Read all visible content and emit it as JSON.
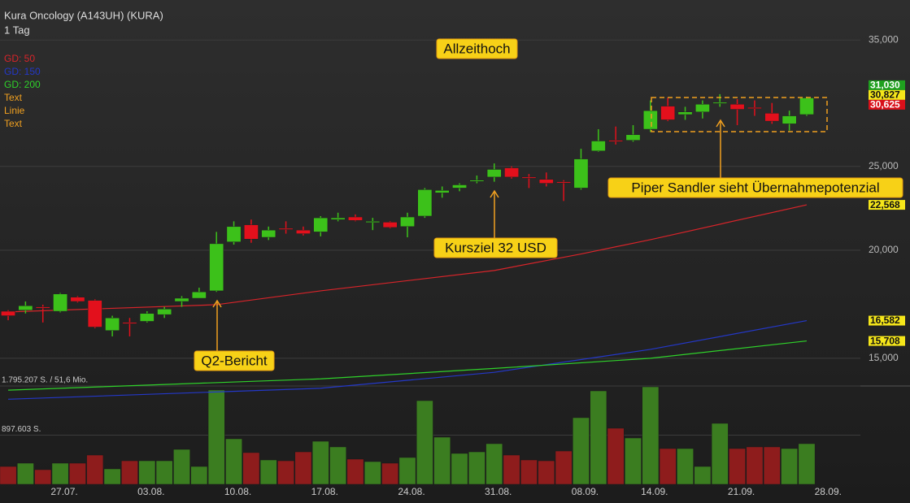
{
  "header": {
    "title": "Kura Oncology (A143UH) (KURA)",
    "interval": "1 Tag"
  },
  "chart_data": {
    "type": "candlestick",
    "xlim": [
      -0.47,
      48.25
    ],
    "xticks": [
      {
        "value": 3,
        "label": "27.07."
      },
      {
        "value": 8,
        "label": "03.08."
      },
      {
        "value": 13,
        "label": "10.08."
      },
      {
        "value": 18,
        "label": "17.08."
      },
      {
        "value": 23,
        "label": "24.08."
      },
      {
        "value": 28,
        "label": "31.08."
      },
      {
        "value": 33,
        "label": "08.09."
      },
      {
        "value": 37,
        "label": "14.09."
      },
      {
        "value": 42,
        "label": "21.09."
      },
      {
        "value": 47,
        "label": "28.09."
      }
    ],
    "open": [
      17.0,
      17.05,
      17.2,
      17.0,
      17.65,
      17.5,
      16.15,
      16.5,
      16.55,
      16.85,
      17.45,
      17.6,
      17.95,
      20.45,
      21.4,
      20.7,
      21.2,
      21.1,
      21.0,
      21.7,
      21.85,
      21.55,
      21.55,
      21.3,
      21.9,
      23.3,
      23.6,
      24.05,
      24.3,
      24.9,
      24.3,
      24.15,
      24.0,
      23.6,
      26.05,
      26.8,
      26.8,
      27.6,
      29.35,
      28.7,
      28.9,
      29.6,
      29.5,
      29.25,
      28.8,
      28.0,
      28.7
    ],
    "high": [
      17.05,
      17.45,
      17.3,
      17.85,
      17.7,
      17.55,
      16.8,
      16.7,
      17.0,
      17.2,
      17.7,
      18.1,
      21.0,
      21.6,
      21.7,
      21.3,
      21.6,
      21.3,
      21.9,
      22.1,
      22.0,
      21.8,
      21.6,
      22.1,
      23.6,
      23.7,
      23.9,
      24.4,
      25.2,
      25.0,
      24.5,
      24.6,
      24.1,
      26.2,
      27.6,
      27.8,
      27.9,
      29.8,
      30.0,
      29.3,
      29.8,
      30.3,
      29.9,
      29.8,
      29.6,
      29.0,
      30.1
    ],
    "low": [
      16.6,
      16.9,
      16.5,
      16.95,
      17.4,
      16.25,
      15.9,
      15.9,
      16.5,
      16.7,
      17.2,
      17.6,
      17.9,
      20.3,
      20.4,
      20.55,
      20.9,
      20.8,
      20.75,
      21.6,
      21.6,
      21.1,
      21.2,
      20.7,
      21.8,
      23.0,
      23.4,
      23.9,
      24.0,
      24.2,
      23.6,
      23.7,
      22.8,
      23.5,
      26.0,
      26.5,
      26.7,
      27.4,
      28.2,
      28.3,
      28.4,
      29.3,
      27.9,
      28.6,
      28.0,
      27.5,
      28.6
    ],
    "close": [
      16.8,
      17.25,
      17.15,
      17.8,
      17.45,
      16.3,
      16.7,
      16.45,
      16.9,
      17.1,
      17.6,
      17.9,
      20.35,
      21.3,
      20.6,
      21.1,
      21.15,
      20.9,
      21.8,
      21.8,
      21.65,
      21.6,
      21.25,
      21.85,
      23.5,
      23.45,
      23.8,
      24.1,
      24.8,
      24.3,
      24.25,
      23.9,
      23.95,
      25.5,
      26.75,
      26.75,
      27.2,
      29.0,
      28.3,
      28.9,
      29.5,
      29.65,
      29.1,
      29.2,
      28.2,
      28.6,
      30.0
    ],
    "up_color": "#3cc11a",
    "down_color": "#e3101c",
    "ylim": [
      13.2,
      38.1
    ],
    "log_scale": true,
    "yticks": [
      {
        "value": 35,
        "label": "35,000"
      },
      {
        "value": 25,
        "label": "25,000"
      },
      {
        "value": 20,
        "label": "20,000"
      },
      {
        "value": 15,
        "label": "15,000"
      }
    ],
    "grid": true,
    "series": [
      {
        "name": "GD: 50",
        "color": "#d8242a",
        "x": [
          0,
          12,
          18,
          28,
          33,
          37,
          46
        ],
        "values": [
          16.97,
          17.3,
          17.95,
          18.95,
          19.8,
          20.57,
          22.568
        ]
      },
      {
        "name": "GD: 150",
        "color": "#2438c8",
        "x": [
          0,
          18,
          28,
          37,
          46
        ],
        "values": [
          13.45,
          13.85,
          14.45,
          15.36,
          16.582
        ]
      },
      {
        "name": "GD: 200",
        "color": "#2fd12a",
        "x": [
          0,
          18,
          28,
          37,
          46
        ],
        "values": [
          13.78,
          14.2,
          14.6,
          15.0,
          15.708
        ]
      }
    ],
    "legend_extra": [
      {
        "label": "Text",
        "color": "#f0a020"
      },
      {
        "label": "Linie",
        "color": "#f0a020"
      },
      {
        "label": "Text",
        "color": "#f0a020"
      }
    ],
    "price_labels": [
      {
        "value": 31.03,
        "label": "31,030",
        "color": "#1fa01f"
      },
      {
        "value": 30.827,
        "label": "30,827",
        "color": "#f5e61a"
      },
      {
        "value": 30.625,
        "label": "30,625",
        "color": "#d9101a"
      },
      {
        "value": 22.568,
        "label": "22,568",
        "color": "#f5e61a"
      },
      {
        "value": 16.582,
        "label": "16,582",
        "color": "#f5e61a"
      },
      {
        "value": 15.708,
        "label": "15,708",
        "color": "#f5e61a"
      }
    ],
    "annotations": [
      "Allzeithoch",
      "Q2-Bericht",
      "Kursziel 32 USD",
      "Piper Sandler sieht Übernahmepotenzial"
    ],
    "volume": {
      "values": [
        326000,
        386000,
        267000,
        386000,
        386000,
        534000,
        282000,
        430000,
        430000,
        430000,
        638000,
        326000,
        1721000,
        831000,
        579000,
        445000,
        430000,
        593000,
        786000,
        683000,
        460000,
        415000,
        386000,
        490000,
        1528000,
        861000,
        564000,
        593000,
        742000,
        534000,
        445000,
        430000,
        608000,
        1217000,
        1706000,
        1024000,
        846000,
        1780000,
        653000,
        653000,
        326000,
        1113000,
        653000,
        683000,
        683000,
        653000,
        742000
      ],
      "up_color": "#3b7d20",
      "down_color": "#8e1c1c",
      "ylim": [
        0,
        1795207
      ],
      "yticks": [
        {
          "value": 1795207,
          "label": "1.795.207 S. / 51,6 Mio."
        },
        {
          "value": 897603,
          "label": "897.603 S."
        }
      ]
    }
  }
}
